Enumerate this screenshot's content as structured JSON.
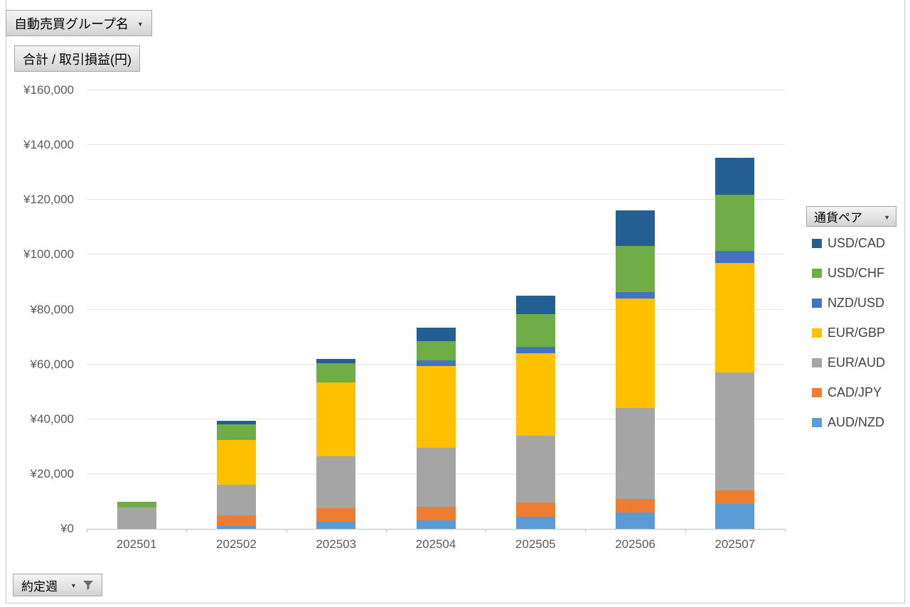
{
  "field_buttons": {
    "group_name": {
      "label": "自動売買グループ名"
    },
    "value_field": {
      "label": "合計 / 取引損益(円)"
    },
    "legend_field": {
      "label": "通貨ペア"
    },
    "axis_field": {
      "label": "約定週"
    }
  },
  "chart_data": {
    "type": "bar",
    "stacked": true,
    "title": "",
    "xlabel": "",
    "ylabel": "合計 / 取引損益(円)",
    "ylim": [
      0,
      160000
    ],
    "ytick_step": 20000,
    "ytick_labels": [
      "¥0",
      "¥20,000",
      "¥40,000",
      "¥60,000",
      "¥80,000",
      "¥100,000",
      "¥120,000",
      "¥140,000",
      "¥160,000"
    ],
    "grid": true,
    "legend_position": "right",
    "legend_title": "通貨ペア",
    "categories": [
      "202501",
      "202502",
      "202503",
      "202504",
      "202505",
      "202506",
      "202507"
    ],
    "series": [
      {
        "name": "AUD/NZD",
        "color": "#5B9BD5",
        "values": [
          0,
          1000,
          2500,
          3000,
          4500,
          6000,
          9000
        ]
      },
      {
        "name": "CAD/JPY",
        "color": "#ED7D31",
        "values": [
          0,
          4000,
          5000,
          5000,
          5000,
          5000,
          5000
        ]
      },
      {
        "name": "EUR/AUD",
        "color": "#A5A5A5",
        "values": [
          7800,
          11000,
          19000,
          21500,
          24500,
          33000,
          43000
        ]
      },
      {
        "name": "EUR/GBP",
        "color": "#FFC000",
        "values": [
          0,
          16500,
          27000,
          30000,
          30000,
          40000,
          40000
        ]
      },
      {
        "name": "NZD/USD",
        "color": "#4472C4",
        "values": [
          0,
          0,
          0,
          2000,
          2300,
          2300,
          4300
        ]
      },
      {
        "name": "USD/CHF",
        "color": "#70AD47",
        "values": [
          2000,
          5500,
          7000,
          7000,
          12000,
          17000,
          20500
        ]
      },
      {
        "name": "USD/CAD",
        "color": "#255E91",
        "values": [
          0,
          1500,
          1500,
          5000,
          6800,
          13000,
          13500
        ]
      }
    ],
    "stack_order": "bottom_to_top",
    "axis_color": "#BFBFBF",
    "gridline_color": "#E4E4E4",
    "tick_label_color": "#595959"
  }
}
